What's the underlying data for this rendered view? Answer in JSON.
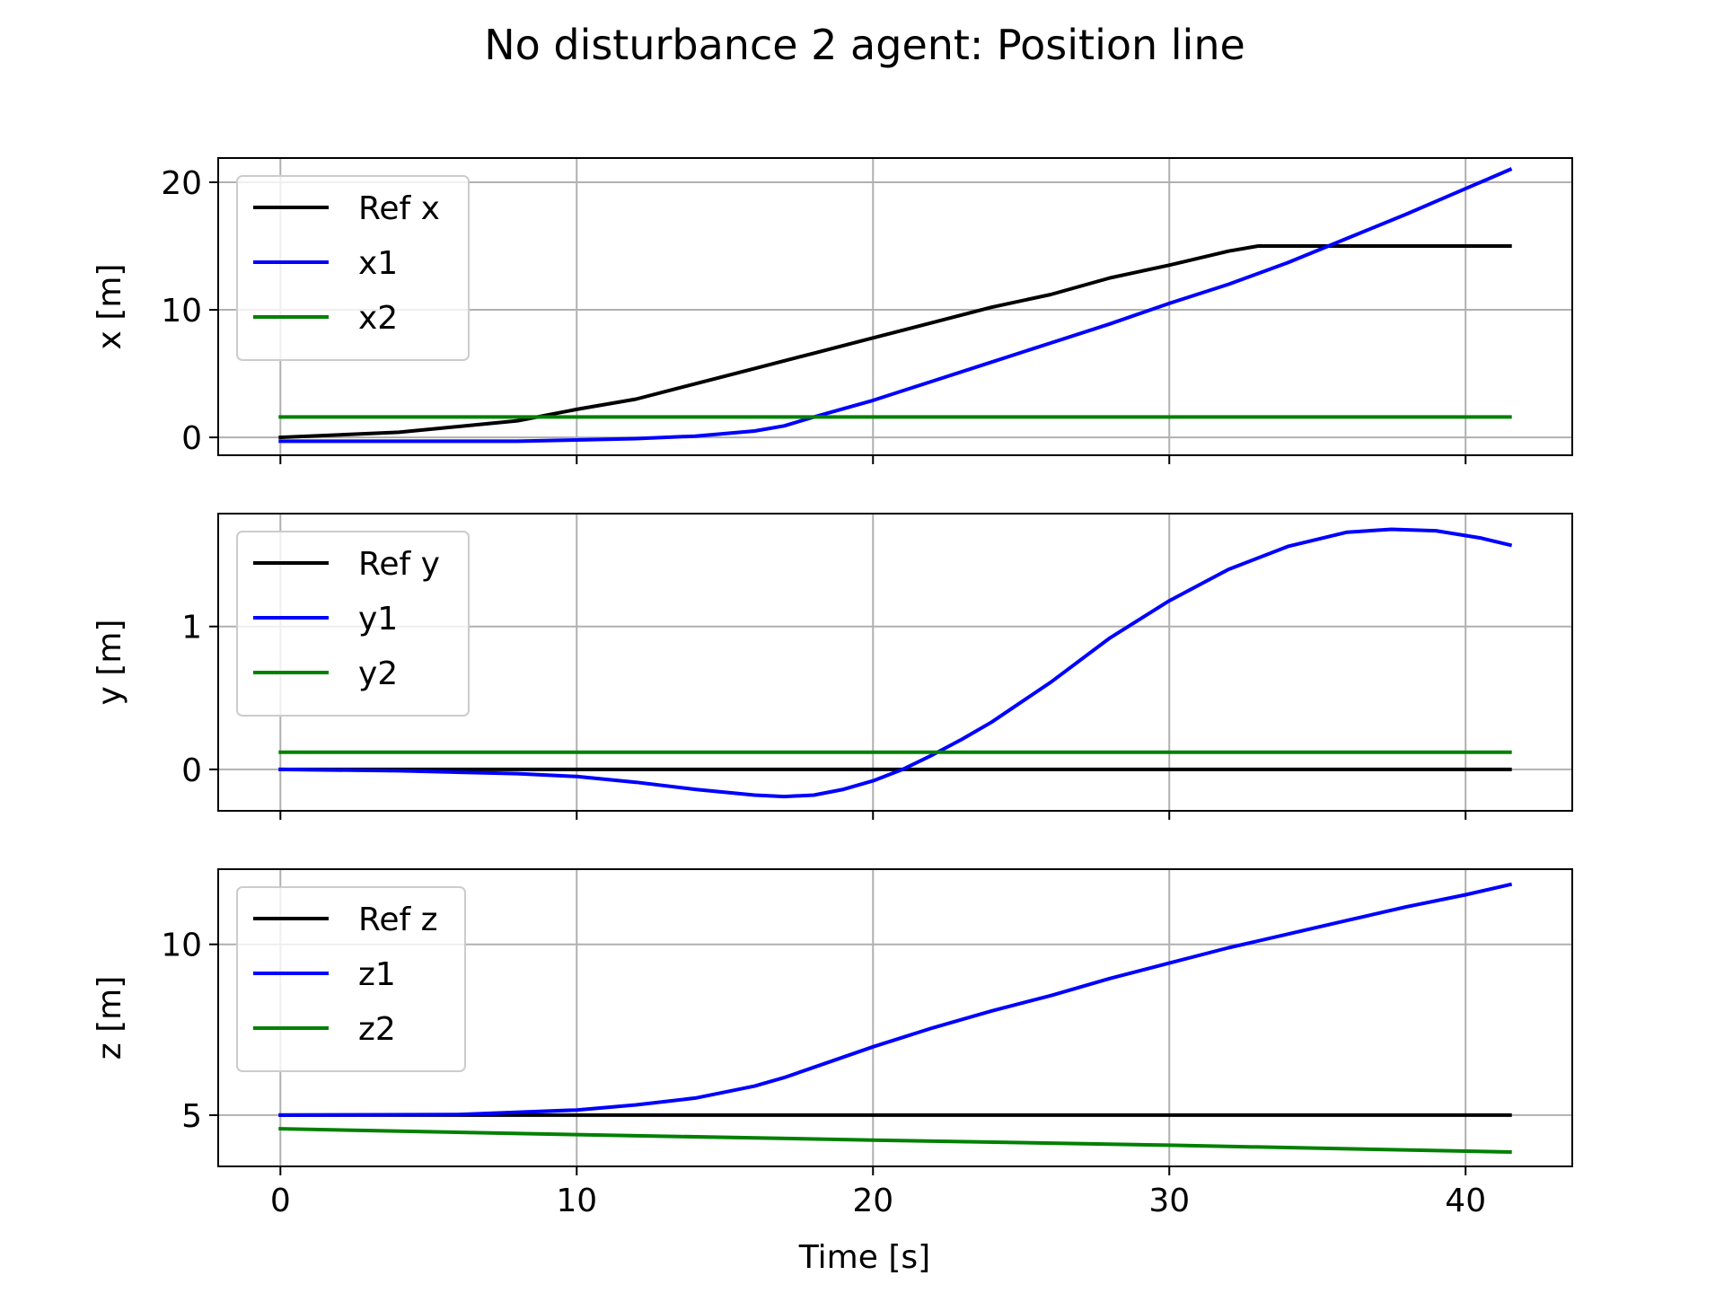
{
  "figure": {
    "title": "No disturbance 2 agent: Position line",
    "xlabel": "Time [s]"
  },
  "chart_data": [
    {
      "type": "line",
      "ylabel": "x [m]",
      "xlim": [
        -2.1,
        43.6
      ],
      "ylim": [
        -1.4,
        21.9
      ],
      "xticks": [
        0,
        10,
        20,
        30,
        40
      ],
      "yticks": [
        0,
        10,
        20
      ],
      "grid": true,
      "legend_position": "top-left",
      "series": [
        {
          "name": "Ref x",
          "color": "#000000",
          "points": [
            [
              0,
              0
            ],
            [
              4,
              0.4
            ],
            [
              8,
              1.3
            ],
            [
              10,
              2.2
            ],
            [
              12,
              3.0
            ],
            [
              14,
              4.2
            ],
            [
              16,
              5.4
            ],
            [
              18,
              6.6
            ],
            [
              20,
              7.8
            ],
            [
              22,
              9.0
            ],
            [
              24,
              10.2
            ],
            [
              26,
              11.2
            ],
            [
              28,
              12.5
            ],
            [
              30,
              13.5
            ],
            [
              32,
              14.6
            ],
            [
              33,
              15
            ],
            [
              41.5,
              15
            ]
          ]
        },
        {
          "name": "x1",
          "color": "#0000ff",
          "points": [
            [
              0,
              -0.3
            ],
            [
              4,
              -0.3
            ],
            [
              8,
              -0.3
            ],
            [
              10,
              -0.2
            ],
            [
              12,
              -0.1
            ],
            [
              14,
              0.1
            ],
            [
              16,
              0.5
            ],
            [
              17,
              0.9
            ],
            [
              18,
              1.6
            ],
            [
              20,
              2.9
            ],
            [
              22,
              4.4
            ],
            [
              24,
              5.9
            ],
            [
              26,
              7.4
            ],
            [
              28,
              8.9
            ],
            [
              30,
              10.5
            ],
            [
              32,
              12.0
            ],
            [
              34,
              13.7
            ],
            [
              36,
              15.6
            ],
            [
              38,
              17.5
            ],
            [
              40,
              19.5
            ],
            [
              41.5,
              21
            ]
          ]
        },
        {
          "name": "x2",
          "color": "#008000",
          "points": [
            [
              0,
              1.6
            ],
            [
              41.5,
              1.6
            ]
          ]
        }
      ]
    },
    {
      "type": "line",
      "ylabel": "y [m]",
      "xlim": [
        -2.1,
        43.6
      ],
      "ylim": [
        -0.29,
        1.79
      ],
      "xticks": [
        0,
        10,
        20,
        30,
        40
      ],
      "yticks": [
        0,
        1
      ],
      "grid": true,
      "legend_position": "top-left",
      "series": [
        {
          "name": "Ref y",
          "color": "#000000",
          "points": [
            [
              0,
              0
            ],
            [
              41.5,
              0
            ]
          ]
        },
        {
          "name": "y1",
          "color": "#0000ff",
          "points": [
            [
              0,
              0
            ],
            [
              4,
              -0.01
            ],
            [
              8,
              -0.03
            ],
            [
              10,
              -0.05
            ],
            [
              12,
              -0.09
            ],
            [
              14,
              -0.14
            ],
            [
              16,
              -0.18
            ],
            [
              17,
              -0.19
            ],
            [
              18,
              -0.18
            ],
            [
              19,
              -0.14
            ],
            [
              20,
              -0.08
            ],
            [
              21,
              0.0
            ],
            [
              22,
              0.1
            ],
            [
              23,
              0.21
            ],
            [
              24,
              0.33
            ],
            [
              26,
              0.61
            ],
            [
              28,
              0.92
            ],
            [
              30,
              1.18
            ],
            [
              32,
              1.4
            ],
            [
              34,
              1.56
            ],
            [
              36,
              1.66
            ],
            [
              37.5,
              1.68
            ],
            [
              39,
              1.67
            ],
            [
              40.5,
              1.62
            ],
            [
              41.5,
              1.57
            ]
          ]
        },
        {
          "name": "y2",
          "color": "#008000",
          "points": [
            [
              0,
              0.12
            ],
            [
              41.5,
              0.12
            ]
          ]
        }
      ]
    },
    {
      "type": "line",
      "ylabel": "z [m]",
      "xlim": [
        -2.1,
        43.6
      ],
      "ylim": [
        3.5,
        12.2
      ],
      "xticks": [
        0,
        10,
        20,
        30,
        40
      ],
      "yticks": [
        5,
        10
      ],
      "grid": true,
      "legend_position": "top-left",
      "series": [
        {
          "name": "Ref z",
          "color": "#000000",
          "points": [
            [
              0,
              5
            ],
            [
              41.5,
              5
            ]
          ]
        },
        {
          "name": "z1",
          "color": "#0000ff",
          "points": [
            [
              0,
              5.0
            ],
            [
              6,
              5.02
            ],
            [
              10,
              5.15
            ],
            [
              12,
              5.3
            ],
            [
              14,
              5.5
            ],
            [
              16,
              5.85
            ],
            [
              17,
              6.1
            ],
            [
              18,
              6.4
            ],
            [
              20,
              7.0
            ],
            [
              22,
              7.55
            ],
            [
              24,
              8.05
            ],
            [
              26,
              8.5
            ],
            [
              28,
              9.0
            ],
            [
              30,
              9.45
            ],
            [
              32,
              9.9
            ],
            [
              34,
              10.3
            ],
            [
              36,
              10.7
            ],
            [
              38,
              11.1
            ],
            [
              40,
              11.45
            ],
            [
              41.5,
              11.75
            ]
          ]
        },
        {
          "name": "z2",
          "color": "#008000",
          "points": [
            [
              0,
              4.6
            ],
            [
              10,
              4.43
            ],
            [
              20,
              4.27
            ],
            [
              30,
              4.12
            ],
            [
              41.5,
              3.92
            ]
          ]
        }
      ]
    }
  ]
}
